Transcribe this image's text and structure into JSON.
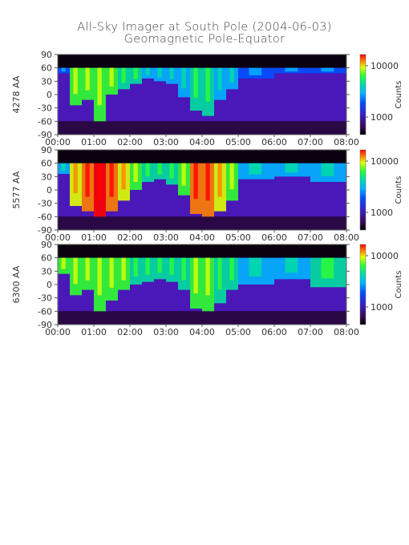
{
  "title": "All-Sky Imager at South Pole (2004-06-03)",
  "subtitle": "Geomagnetic Pole-Equator",
  "chart_data": [
    {
      "type": "heatmap",
      "ylabel": "4278 AA",
      "x_ticks": [
        "00:00",
        "01:00",
        "02:00",
        "03:00",
        "04:00",
        "05:00",
        "06:00",
        "07:00",
        "08:00"
      ],
      "y_ticks": [
        90,
        60,
        30,
        0,
        -30,
        -60,
        -90
      ],
      "xlim": [
        "00:00",
        "08:00"
      ],
      "ylim": [
        -90,
        90
      ],
      "colorbar": {
        "label": "Counts",
        "scale": "log",
        "ticks": [
          "10000",
          "1000"
        ]
      },
      "activity": [
        {
          "time": "00:00",
          "reach": 0.1,
          "i": 0.2
        },
        {
          "time": "00:20",
          "reach": 0.7,
          "i": 0.5
        },
        {
          "time": "00:40",
          "reach": 0.6,
          "i": 0.55
        },
        {
          "time": "01:00",
          "reach": 1.0,
          "i": 0.6
        },
        {
          "time": "01:20",
          "reach": 0.5,
          "i": 0.5
        },
        {
          "time": "01:40",
          "reach": 0.4,
          "i": 0.45
        },
        {
          "time": "02:00",
          "reach": 0.3,
          "i": 0.4
        },
        {
          "time": "02:20",
          "reach": 0.2,
          "i": 0.3
        },
        {
          "time": "02:40",
          "reach": 0.25,
          "i": 0.3
        },
        {
          "time": "03:00",
          "reach": 0.3,
          "i": 0.3
        },
        {
          "time": "03:20",
          "reach": 0.55,
          "i": 0.35
        },
        {
          "time": "03:40",
          "reach": 0.8,
          "i": 0.4
        },
        {
          "time": "04:00",
          "reach": 0.9,
          "i": 0.45
        },
        {
          "time": "04:20",
          "reach": 0.6,
          "i": 0.35
        },
        {
          "time": "04:40",
          "reach": 0.4,
          "i": 0.3
        },
        {
          "time": "05:00",
          "reach": 0.2,
          "i": 0.2
        },
        {
          "time": "06:00",
          "reach": 0.1,
          "i": 0.1
        },
        {
          "time": "07:00",
          "reach": 0.1,
          "i": 0.1
        },
        {
          "time": "08:00",
          "reach": 0.1,
          "i": 0.1
        }
      ]
    },
    {
      "type": "heatmap",
      "ylabel": "5577 AA",
      "x_ticks": [
        "00:00",
        "01:00",
        "02:00",
        "03:00",
        "04:00",
        "05:00",
        "06:00",
        "07:00",
        "08:00"
      ],
      "y_ticks": [
        90,
        60,
        30,
        0,
        -30,
        -60,
        -90
      ],
      "xlim": [
        "00:00",
        "08:00"
      ],
      "ylim": [
        -90,
        90
      ],
      "colorbar": {
        "label": "Counts",
        "scale": "log",
        "ticks": [
          "10000",
          "1000"
        ]
      },
      "activity": [
        {
          "time": "00:00",
          "reach": 0.2,
          "i": 0.3
        },
        {
          "time": "00:20",
          "reach": 0.8,
          "i": 0.75
        },
        {
          "time": "00:40",
          "reach": 0.9,
          "i": 0.85
        },
        {
          "time": "01:00",
          "reach": 1.0,
          "i": 0.95
        },
        {
          "time": "01:20",
          "reach": 0.9,
          "i": 0.85
        },
        {
          "time": "01:40",
          "reach": 0.7,
          "i": 0.75
        },
        {
          "time": "02:00",
          "reach": 0.5,
          "i": 0.55
        },
        {
          "time": "02:20",
          "reach": 0.35,
          "i": 0.45
        },
        {
          "time": "02:40",
          "reach": 0.3,
          "i": 0.4
        },
        {
          "time": "03:00",
          "reach": 0.4,
          "i": 0.45
        },
        {
          "time": "03:20",
          "reach": 0.6,
          "i": 0.55
        },
        {
          "time": "03:40",
          "reach": 0.95,
          "i": 0.85
        },
        {
          "time": "04:00",
          "reach": 1.0,
          "i": 0.9
        },
        {
          "time": "04:20",
          "reach": 0.9,
          "i": 0.75
        },
        {
          "time": "04:40",
          "reach": 0.7,
          "i": 0.55
        },
        {
          "time": "05:00",
          "reach": 0.3,
          "i": 0.35
        },
        {
          "time": "06:00",
          "reach": 0.25,
          "i": 0.3
        },
        {
          "time": "07:00",
          "reach": 0.35,
          "i": 0.3
        },
        {
          "time": "08:00",
          "reach": 0.4,
          "i": 0.3
        }
      ]
    },
    {
      "type": "heatmap",
      "ylabel": "6300 AA",
      "x_ticks": [
        "00:00",
        "01:00",
        "02:00",
        "03:00",
        "04:00",
        "05:00",
        "06:00",
        "07:00",
        "08:00"
      ],
      "y_ticks": [
        90,
        60,
        30,
        0,
        -30,
        -60,
        -90
      ],
      "xlim": [
        "00:00",
        "08:00"
      ],
      "ylim": [
        -90,
        90
      ],
      "colorbar": {
        "label": "Counts",
        "scale": "log",
        "ticks": [
          "10000",
          "1000"
        ]
      },
      "activity": [
        {
          "time": "00:00",
          "reach": 0.3,
          "i": 0.5
        },
        {
          "time": "00:20",
          "reach": 0.7,
          "i": 0.55
        },
        {
          "time": "00:40",
          "reach": 0.6,
          "i": 0.55
        },
        {
          "time": "01:00",
          "reach": 1.0,
          "i": 0.6
        },
        {
          "time": "01:20",
          "reach": 0.8,
          "i": 0.55
        },
        {
          "time": "01:40",
          "reach": 0.6,
          "i": 0.5
        },
        {
          "time": "02:00",
          "reach": 0.5,
          "i": 0.45
        },
        {
          "time": "02:20",
          "reach": 0.45,
          "i": 0.42
        },
        {
          "time": "02:40",
          "reach": 0.4,
          "i": 0.4
        },
        {
          "time": "03:00",
          "reach": 0.45,
          "i": 0.4
        },
        {
          "time": "03:20",
          "reach": 0.6,
          "i": 0.42
        },
        {
          "time": "03:40",
          "reach": 0.95,
          "i": 0.5
        },
        {
          "time": "04:00",
          "reach": 1.0,
          "i": 0.5
        },
        {
          "time": "04:20",
          "reach": 0.85,
          "i": 0.45
        },
        {
          "time": "04:40",
          "reach": 0.6,
          "i": 0.4
        },
        {
          "time": "05:00",
          "reach": 0.5,
          "i": 0.35
        },
        {
          "time": "06:00",
          "reach": 0.4,
          "i": 0.35
        },
        {
          "time": "07:00",
          "reach": 0.55,
          "i": 0.38
        },
        {
          "time": "08:00",
          "reach": 0.5,
          "i": 0.35
        }
      ]
    }
  ]
}
